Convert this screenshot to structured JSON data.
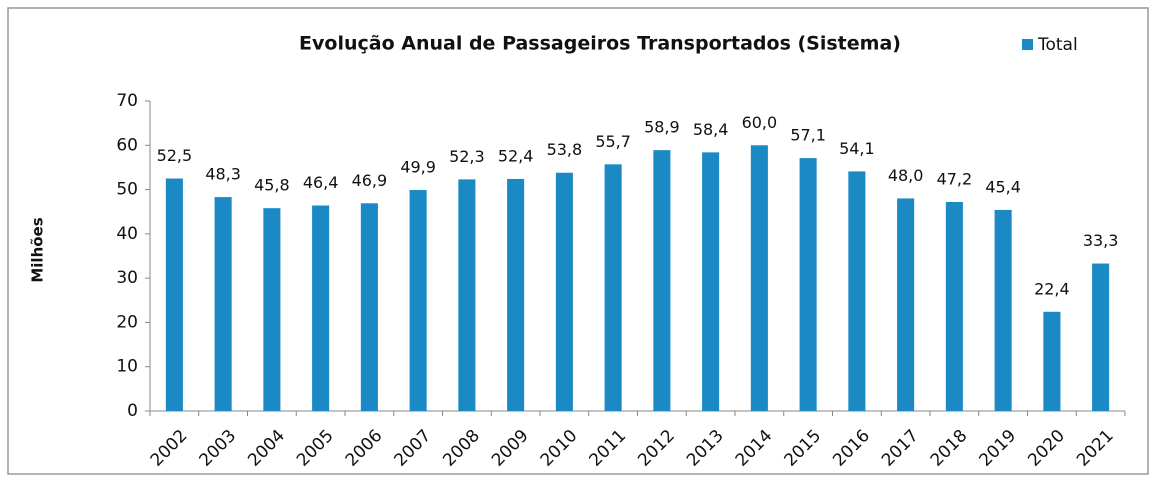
{
  "chart_data": {
    "type": "bar",
    "title": "Evolução Anual de Passageiros Transportados (Sistema)",
    "y_label": "Milhões",
    "categories": [
      "2002",
      "2003",
      "2004",
      "2005",
      "2006",
      "2007",
      "2008",
      "2009",
      "2010",
      "2011",
      "2012",
      "2013",
      "2014",
      "2015",
      "2016",
      "2017",
      "2018",
      "2019",
      "2020",
      "2021"
    ],
    "series": [
      {
        "name": "Total",
        "color": "#1b8ac4",
        "values": [
          52.5,
          48.3,
          45.8,
          46.4,
          46.9,
          49.9,
          52.3,
          52.4,
          53.8,
          55.7,
          58.9,
          58.4,
          60.0,
          57.1,
          54.1,
          48.0,
          47.2,
          45.4,
          22.4,
          33.3
        ],
        "value_labels": [
          "52,5",
          "48,3",
          "45,8",
          "46,4",
          "46,9",
          "49,9",
          "52,3",
          "52,4",
          "53,8",
          "55,7",
          "58,9",
          "58,4",
          "60,0",
          "57,1",
          "54,1",
          "48,0",
          "47,2",
          "45,4",
          "22,4",
          "33,3"
        ]
      }
    ],
    "ylim": [
      0,
      70
    ],
    "yticks": [
      0,
      10,
      20,
      30,
      40,
      50,
      60,
      70
    ],
    "legend": "top-right",
    "grid": false
  }
}
